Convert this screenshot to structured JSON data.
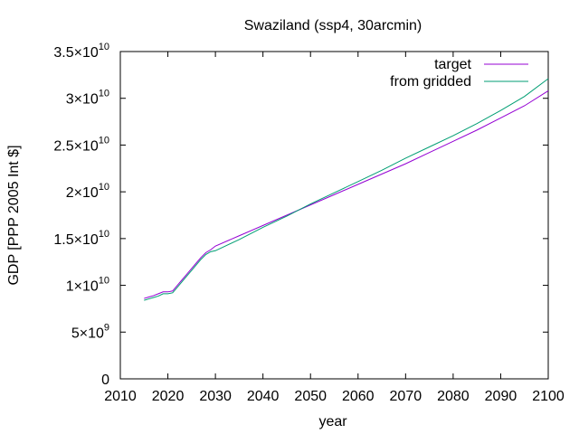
{
  "chart_data": {
    "type": "line",
    "title": "Swaziland (ssp4, 30arcmin)",
    "xlabel": "year",
    "ylabel": "GDP [PPP 2005 Int $]",
    "xlim": [
      2010,
      2100
    ],
    "ylim": [
      0,
      35000000000
    ],
    "x_ticks": [
      2010,
      2020,
      2030,
      2040,
      2050,
      2060,
      2070,
      2080,
      2090,
      2100
    ],
    "y_ticks": [
      {
        "value": 0,
        "mantissa": "0",
        "exponent": ""
      },
      {
        "value": 5000000000,
        "mantissa": "5×10",
        "exponent": "9"
      },
      {
        "value": 10000000000,
        "mantissa": "1×10",
        "exponent": "10"
      },
      {
        "value": 15000000000,
        "mantissa": "1.5×10",
        "exponent": "10"
      },
      {
        "value": 20000000000,
        "mantissa": "2×10",
        "exponent": "10"
      },
      {
        "value": 25000000000,
        "mantissa": "2.5×10",
        "exponent": "10"
      },
      {
        "value": 30000000000,
        "mantissa": "3×10",
        "exponent": "10"
      },
      {
        "value": 35000000000,
        "mantissa": "3.5×10",
        "exponent": "10"
      }
    ],
    "grid": false,
    "legend_position": "top-right",
    "series": [
      {
        "name": "target",
        "color": "#9400d3",
        "x": [
          2015,
          2016,
          2017,
          2018,
          2019,
          2020,
          2021,
          2022,
          2023,
          2024,
          2025,
          2026,
          2027,
          2028,
          2029,
          2030,
          2035,
          2040,
          2045,
          2050,
          2055,
          2060,
          2065,
          2070,
          2075,
          2080,
          2085,
          2090,
          2095,
          2100
        ],
        "y": [
          8600000000,
          8750000000,
          8900000000,
          9100000000,
          9300000000,
          9300000000,
          9400000000,
          10000000000,
          10600000000,
          11200000000,
          11800000000,
          12400000000,
          13000000000,
          13500000000,
          13800000000,
          14200000000,
          15300000000,
          16400000000,
          17500000000,
          18600000000,
          19700000000,
          20800000000,
          21900000000,
          23000000000,
          24200000000,
          25400000000,
          26600000000,
          27900000000,
          29200000000,
          30800000000
        ]
      },
      {
        "name": "from gridded",
        "color": "#009e73",
        "x": [
          2015,
          2016,
          2017,
          2018,
          2019,
          2020,
          2021,
          2022,
          2023,
          2024,
          2025,
          2026,
          2027,
          2028,
          2029,
          2030,
          2035,
          2040,
          2045,
          2050,
          2055,
          2060,
          2065,
          2070,
          2075,
          2080,
          2085,
          2090,
          2095,
          2100
        ],
        "y": [
          8400000000,
          8550000000,
          8700000000,
          8850000000,
          9100000000,
          9100000000,
          9200000000,
          9800000000,
          10400000000,
          11000000000,
          11600000000,
          12200000000,
          12800000000,
          13300000000,
          13600000000,
          13700000000,
          14900000000,
          16200000000,
          17400000000,
          18700000000,
          19900000000,
          21100000000,
          22300000000,
          23600000000,
          24800000000,
          26000000000,
          27300000000,
          28700000000,
          30200000000,
          32100000000
        ]
      }
    ]
  }
}
